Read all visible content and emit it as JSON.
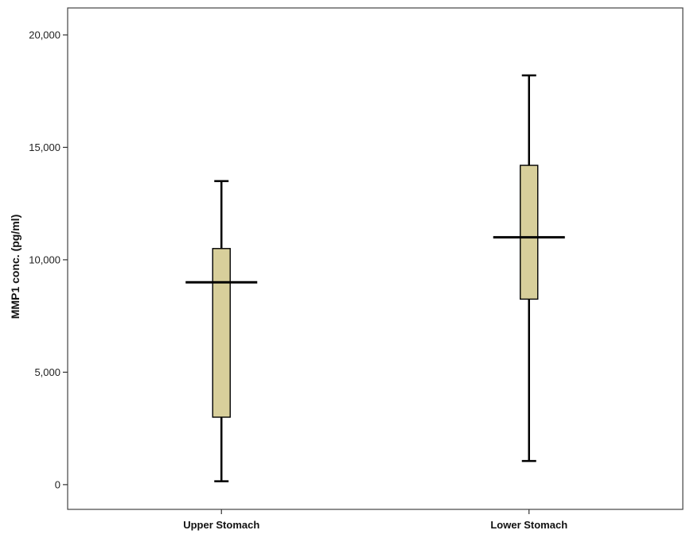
{
  "chart_data": {
    "type": "box",
    "categories": [
      "Upper Stomach",
      "Lower Stomach"
    ],
    "boxes": [
      {
        "category": "Upper Stomach",
        "min": 150,
        "q1": 3000,
        "median": 9000,
        "q3": 10500,
        "max": 13500
      },
      {
        "category": "Lower Stomach",
        "min": 1050,
        "q1": 8250,
        "median": 11000,
        "q3": 14200,
        "max": 18200
      }
    ],
    "ylabel": "MMP1 conc. (pg/ml)",
    "xlabel": "",
    "ylim": [
      -1100,
      21200
    ],
    "yticks": [
      0,
      5000,
      10000,
      15000,
      20000
    ],
    "ytick_labels": [
      "0",
      "5,000",
      "10,000",
      "15,000",
      "20,000"
    ],
    "grid": false,
    "colors": {
      "box_fill": "#d8cf9b",
      "stroke": "#000000",
      "frame": "#444444"
    }
  }
}
